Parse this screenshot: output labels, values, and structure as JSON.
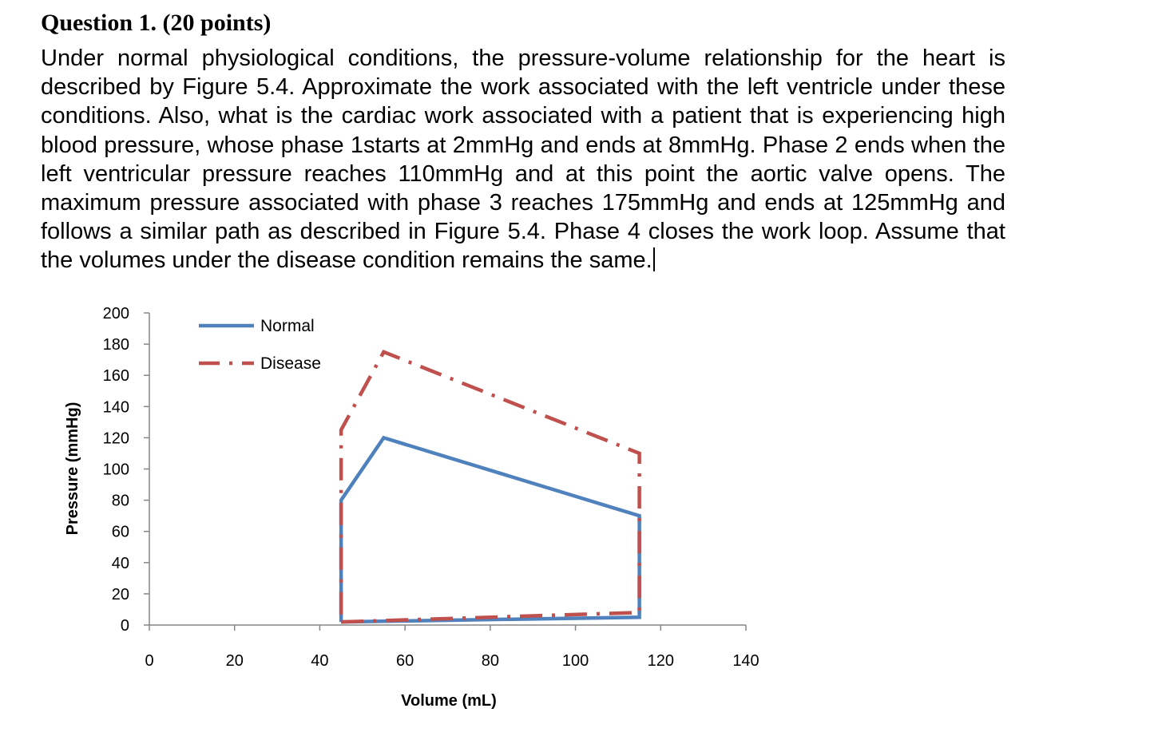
{
  "question": {
    "title": "Question 1. (20 points)",
    "body": "Under normal physiological conditions, the pressure-volume relationship for the heart is described by Figure 5.4.  Approximate the work associated with the left ventricle under these conditions.   Also, what is the cardiac work associated with a patient that is experiencing high blood pressure, whose phase 1starts at 2mmHg and ends at 8mmHg. Phase 2 ends when the left ventricular pressure reaches 110mmHg and at this point the aortic valve opens.  The maximum pressure associated with phase 3 reaches 175mmHg and ends at 125mmHg and follows a similar path as described in Figure 5.4.  Phase 4 closes the work loop.  Assume that the volumes under the disease condition remains the same."
  },
  "chart_data": {
    "type": "line",
    "title": "",
    "xlabel": "Volume (mL)",
    "ylabel": "Pressure (mmHg)",
    "xlim": [
      0,
      140
    ],
    "ylim": [
      0,
      200
    ],
    "xticks": [
      0,
      20,
      40,
      60,
      80,
      100,
      120,
      140
    ],
    "yticks": [
      0,
      20,
      40,
      60,
      80,
      100,
      120,
      140,
      160,
      180,
      200
    ],
    "grid": false,
    "legend_position": "top-left",
    "series": [
      {
        "name": "Normal",
        "color": "#4F81BD",
        "style": "solid",
        "points": [
          [
            45,
            2
          ],
          [
            115,
            5
          ],
          [
            115,
            70
          ],
          [
            55,
            120
          ],
          [
            45,
            80
          ],
          [
            45,
            2
          ]
        ]
      },
      {
        "name": "Disease",
        "color": "#C0504D",
        "style": "dash-dot",
        "points": [
          [
            45,
            2
          ],
          [
            115,
            8
          ],
          [
            115,
            110
          ],
          [
            55,
            175
          ],
          [
            45,
            125
          ],
          [
            45,
            2
          ]
        ]
      }
    ]
  }
}
